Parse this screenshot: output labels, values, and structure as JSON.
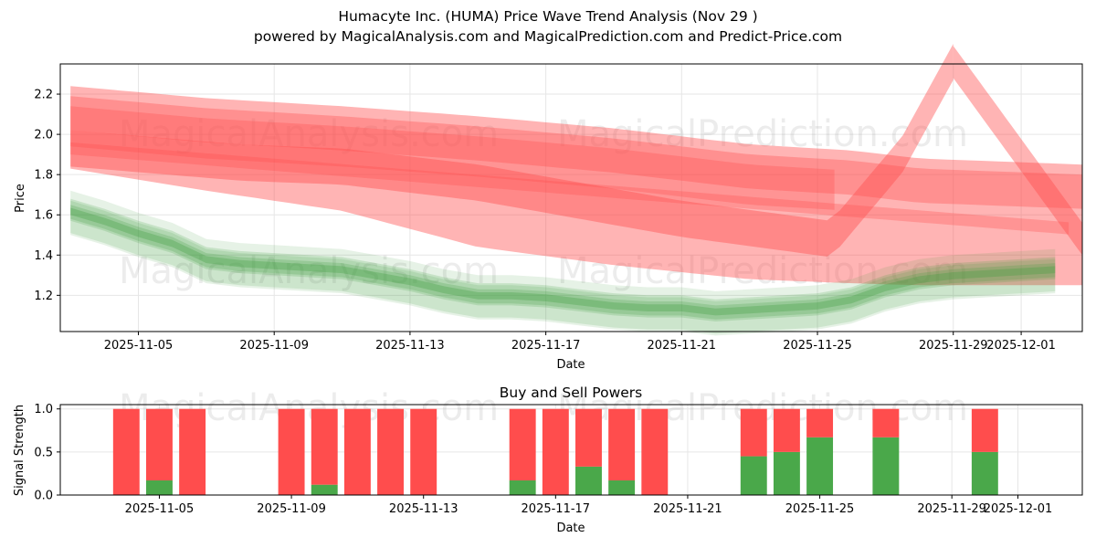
{
  "title": {
    "line1": "Humacyte Inc. (HUMA) Price Wave Trend Analysis (Nov 29 )",
    "line2": "powered by MagicalAnalysis.com and MagicalPrediction.com and Predict-Price.com"
  },
  "watermarks": [
    "MagicalAnalysis.com",
    "MagicalPrediction.com"
  ],
  "colors": {
    "red": "#ff4d4d",
    "green": "#3a9a3a",
    "buy": "#4aa84a",
    "sell": "#ff4d4d",
    "grid": "#e6e6e6"
  },
  "chart_data": [
    {
      "type": "area",
      "name": "price-wave",
      "title": "",
      "xlabel": "Date",
      "ylabel": "Price",
      "grid": true,
      "xlim": [
        "2025-11-02 12:00",
        "2025-12-03 00:00"
      ],
      "ylim": [
        1.02,
        2.35
      ],
      "x_ticks": [
        "2025-11-05",
        "2025-11-09",
        "2025-11-13",
        "2025-11-17",
        "2025-11-21",
        "2025-11-25",
        "2025-11-29",
        "2025-12-01"
      ],
      "y_ticks": [
        1.2,
        1.4,
        1.6,
        1.8,
        2.0,
        2.2
      ],
      "x_days": [
        3,
        4,
        5,
        6,
        7,
        8,
        9,
        10,
        11,
        12,
        13,
        14,
        15,
        16,
        17,
        18,
        19,
        20,
        21,
        22,
        23,
        24,
        25,
        26,
        27,
        28,
        29,
        30,
        31,
        32
      ],
      "green_center": [
        1.62,
        1.57,
        1.51,
        1.46,
        1.38,
        1.36,
        1.35,
        1.34,
        1.33,
        1.3,
        1.27,
        1.23,
        1.2,
        1.2,
        1.19,
        1.17,
        1.15,
        1.14,
        1.14,
        1.12,
        1.13,
        1.14,
        1.15,
        1.18,
        1.24,
        1.28,
        1.3,
        1.31,
        1.32,
        1.33
      ],
      "red_bands": [
        {
          "name": "outer-upper",
          "days": [
            3,
            7,
            11,
            15,
            19,
            23,
            26,
            28,
            32.8
          ],
          "values": [
            2.24,
            2.18,
            2.14,
            2.09,
            2.03,
            1.95,
            1.92,
            1.88,
            1.85
          ]
        },
        {
          "name": "outer-lower",
          "days": [
            3,
            7,
            11,
            15,
            19,
            23,
            26,
            28,
            32.8
          ],
          "values": [
            1.83,
            1.72,
            1.62,
            1.44,
            1.35,
            1.28,
            1.26,
            1.25,
            1.25
          ]
        },
        {
          "name": "wave-up",
          "days": [
            3,
            8,
            11,
            15,
            18,
            21,
            25.4,
            27.5,
            29
          ],
          "values": [
            1.93,
            1.86,
            1.84,
            1.76,
            1.67,
            1.58,
            1.48,
            1.9,
            2.36
          ]
        },
        {
          "name": "wave-down",
          "days": [
            29,
            32.8
          ],
          "values": [
            2.36,
            1.48
          ]
        }
      ]
    },
    {
      "type": "bar",
      "name": "buy-sell-powers",
      "title": "Buy and Sell Powers",
      "xlabel": "Date",
      "ylabel": "Signal Strength",
      "grid": true,
      "ylim": [
        0.0,
        1.05
      ],
      "y_ticks": [
        0.0,
        0.5,
        1.0
      ],
      "x_ticks": [
        "2025-11-05",
        "2025-11-09",
        "2025-11-13",
        "2025-11-17",
        "2025-11-21",
        "2025-11-25",
        "2025-11-29",
        "2025-12-01"
      ],
      "dates": [
        "2025-11-04",
        "2025-11-05",
        "2025-11-06",
        "2025-11-09",
        "2025-11-10",
        "2025-11-11",
        "2025-11-12",
        "2025-11-13",
        "2025-11-16",
        "2025-11-17",
        "2025-11-18",
        "2025-11-19",
        "2025-11-20",
        "2025-11-23",
        "2025-11-24",
        "2025-11-25",
        "2025-11-27",
        "2025-11-30"
      ],
      "series": [
        {
          "name": "Buy",
          "values": [
            0.0,
            0.17,
            0.0,
            0.0,
            0.12,
            0.0,
            0.0,
            0.0,
            0.17,
            0.0,
            0.33,
            0.17,
            0.0,
            0.45,
            0.5,
            0.67,
            0.67,
            0.5
          ]
        },
        {
          "name": "Sell",
          "values": [
            1.0,
            0.83,
            1.0,
            1.0,
            0.88,
            1.0,
            1.0,
            1.0,
            0.83,
            1.0,
            0.67,
            0.83,
            1.0,
            0.55,
            0.5,
            0.33,
            0.33,
            0.5
          ]
        }
      ]
    }
  ]
}
